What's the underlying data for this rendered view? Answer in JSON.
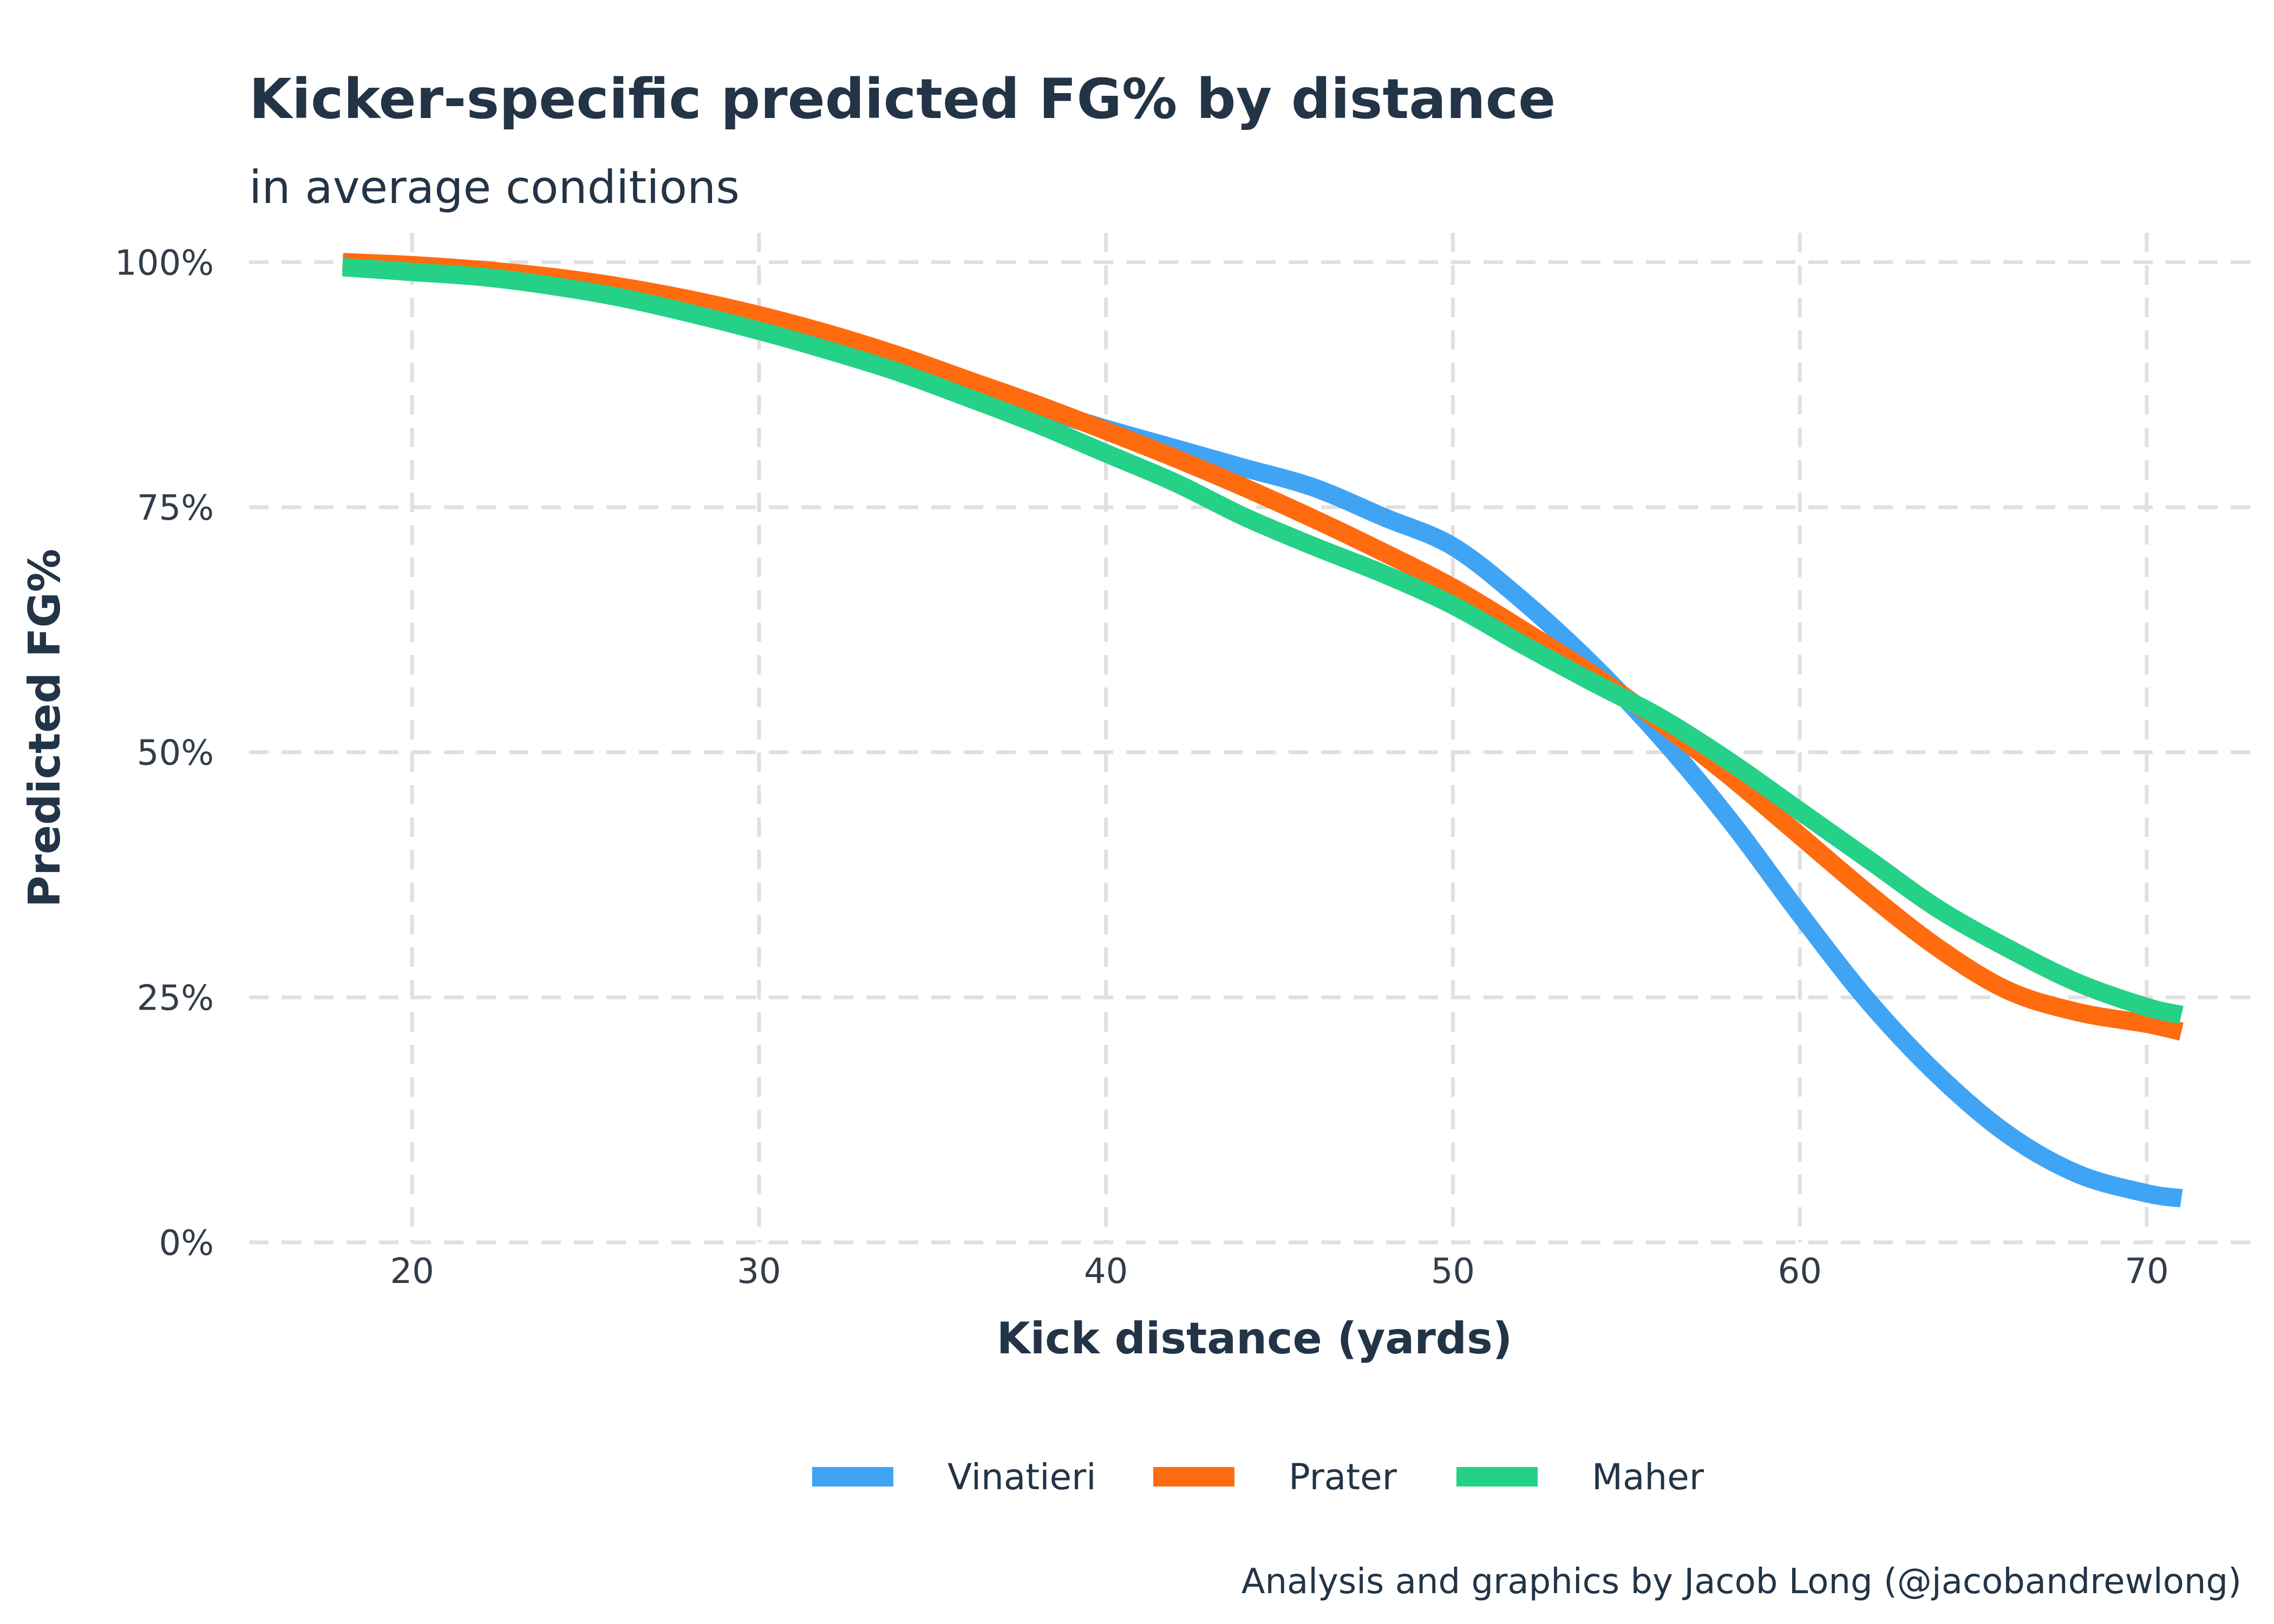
{
  "chart_data": {
    "type": "line",
    "title": "Kicker-specific predicted FG% by distance",
    "subtitle": "in average conditions",
    "xlabel": "Kick distance (yards)",
    "ylabel": "Predicted FG%",
    "caption": "Analysis and graphics by Jacob Long (@jacobandrewlong)",
    "xlim": [
      15.3,
      73.2
    ],
    "ylim": [
      0,
      1.03
    ],
    "x_ticks": [
      20,
      30,
      40,
      50,
      60,
      70
    ],
    "x_tick_labels": [
      "20",
      "30",
      "40",
      "50",
      "60",
      "70"
    ],
    "y_ticks": [
      0,
      0.25,
      0.5,
      0.75,
      1.0
    ],
    "y_tick_labels": [
      "0%",
      "25%",
      "50%",
      "75%",
      "100%"
    ],
    "grid": true,
    "legend_position": "bottom",
    "x": [
      18,
      20,
      22,
      24,
      26,
      28,
      30,
      32,
      34,
      36,
      38,
      40,
      42,
      44,
      46,
      48,
      50,
      52,
      54,
      56,
      58,
      60,
      62,
      64,
      66,
      68,
      70,
      71
    ],
    "series": [
      {
        "name": "Vinatieri",
        "color": "#40A4F5",
        "values": [
          1.0,
          0.995,
          0.988,
          0.978,
          0.965,
          0.95,
          0.935,
          0.918,
          0.898,
          0.876,
          0.852,
          0.83,
          0.81,
          0.79,
          0.77,
          0.74,
          0.71,
          0.655,
          0.59,
          0.515,
          0.43,
          0.335,
          0.245,
          0.17,
          0.11,
          0.07,
          0.05,
          0.045
        ]
      },
      {
        "name": "Prater",
        "color": "#FF6B0F",
        "values": [
          1.0,
          0.997,
          0.992,
          0.985,
          0.975,
          0.962,
          0.946,
          0.927,
          0.905,
          0.88,
          0.855,
          0.828,
          0.8,
          0.77,
          0.738,
          0.704,
          0.668,
          0.625,
          0.58,
          0.53,
          0.475,
          0.415,
          0.355,
          0.3,
          0.257,
          0.235,
          0.223,
          0.215
        ]
      },
      {
        "name": "Maher",
        "color": "#25D187",
        "values": [
          0.995,
          0.99,
          0.985,
          0.976,
          0.964,
          0.948,
          0.93,
          0.91,
          0.888,
          0.862,
          0.835,
          0.805,
          0.775,
          0.74,
          0.71,
          0.682,
          0.65,
          0.61,
          0.572,
          0.535,
          0.49,
          0.44,
          0.39,
          0.34,
          0.3,
          0.265,
          0.24,
          0.232
        ]
      }
    ]
  }
}
